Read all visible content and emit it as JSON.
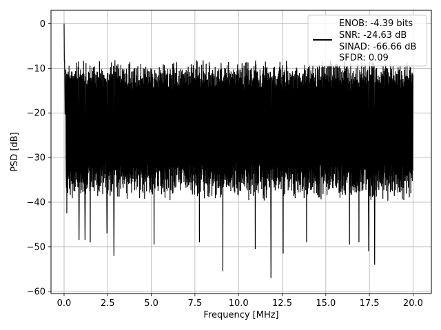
{
  "chart_data": {
    "type": "line",
    "title": "",
    "xlabel": "Frequency [MHz]",
    "ylabel": "PSD [dB]",
    "xlim": [
      -0.75,
      21.05
    ],
    "ylim": [
      -60.5,
      3.0
    ],
    "xticks": [
      0.0,
      2.5,
      5.0,
      7.5,
      10.0,
      12.5,
      15.0,
      17.5,
      20.0
    ],
    "xtick_labels": [
      "0.0",
      "2.5",
      "5.0",
      "7.5",
      "10.0",
      "12.5",
      "15.0",
      "17.5",
      "20.0"
    ],
    "yticks": [
      0,
      -10,
      -20,
      -30,
      -40,
      -50,
      -60
    ],
    "ytick_labels": [
      "0",
      "−10",
      "−20",
      "−30",
      "−40",
      "−50",
      "−60"
    ],
    "grid": true,
    "legend_position": "top-right",
    "legend_lines": [
      "ENOB: -4.39 bits",
      "SNR: -24.63 dB",
      "SINAD: -66.66 dB",
      "SFDR: 0.09"
    ],
    "series": [
      {
        "color": "#000000",
        "x_range": [
          0.0,
          20.0
        ],
        "peak": {
          "x": 0.0,
          "y": 0.0
        },
        "band_upper_dB": [
          -12,
          -8
        ],
        "band_lower_dB": [
          -34,
          -40
        ],
        "notable_dips": [
          {
            "x": 0.15,
            "y": -42.5
          },
          {
            "x": 0.85,
            "y": -48.5
          },
          {
            "x": 1.2,
            "y": -48.5
          },
          {
            "x": 1.5,
            "y": -49.0
          },
          {
            "x": 2.45,
            "y": -47.0
          },
          {
            "x": 2.85,
            "y": -52.0
          },
          {
            "x": 5.15,
            "y": -49.5
          },
          {
            "x": 7.75,
            "y": -49.0
          },
          {
            "x": 9.1,
            "y": -55.5
          },
          {
            "x": 10.95,
            "y": -50.5
          },
          {
            "x": 11.85,
            "y": -57.0
          },
          {
            "x": 12.55,
            "y": -51.5
          },
          {
            "x": 13.9,
            "y": -49.0
          },
          {
            "x": 16.35,
            "y": -49.5
          },
          {
            "x": 16.9,
            "y": -49.0
          },
          {
            "x": 17.45,
            "y": -51.0
          },
          {
            "x": 17.8,
            "y": -54.0
          }
        ]
      }
    ]
  }
}
